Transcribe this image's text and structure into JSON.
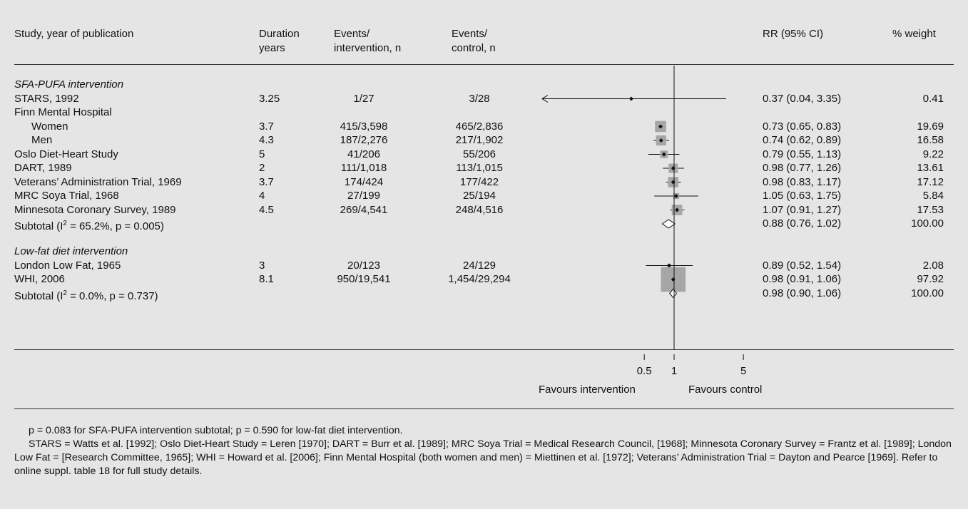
{
  "header": {
    "study": "Study, year of publication",
    "duration_1": "Duration",
    "duration_2": "years",
    "events_int_1": "Events/",
    "events_int_2": "intervention, n",
    "events_ctl_1": "Events/",
    "events_ctl_2": "control, n",
    "rr": "RR (95% CI)",
    "weight": "% weight"
  },
  "chart_data": {
    "type": "forest",
    "x_scale": "log",
    "xlim": [
      0.075,
      11
    ],
    "x_ticks": [
      {
        "value": 0.5,
        "label": "0.5"
      },
      {
        "value": 1,
        "label": "1"
      },
      {
        "value": 5,
        "label": "5"
      }
    ],
    "null_line": 1,
    "favours_left": "Favours intervention",
    "favours_right": "Favours control",
    "groups": [
      {
        "name": "SFA-PUFA intervention",
        "rows": [
          {
            "label": "STARS, 1992",
            "duration": "3.25",
            "ev_int": "1/27",
            "ev_ctl": "3/28",
            "rr": 0.37,
            "lo": 0.04,
            "hi": 3.35,
            "ci_text": "0.37 (0.04, 3.35)",
            "weight": "0.41",
            "weight_value": 0.41
          },
          {
            "label": "Finn Mental Hospital",
            "heading": true
          },
          {
            "label": "Women",
            "indent": true,
            "duration": "3.7",
            "ev_int": "415/3,598",
            "ev_ctl": "465/2,836",
            "rr": 0.73,
            "lo": 0.65,
            "hi": 0.83,
            "ci_text": "0.73 (0.65, 0.83)",
            "weight": "19.69",
            "weight_value": 19.69
          },
          {
            "label": "Men",
            "indent": true,
            "duration": "4.3",
            "ev_int": "187/2,276",
            "ev_ctl": "217/1,902",
            "rr": 0.74,
            "lo": 0.62,
            "hi": 0.89,
            "ci_text": "0.74 (0.62, 0.89)",
            "weight": "16.58",
            "weight_value": 16.58
          },
          {
            "label": "Oslo Diet-Heart Study",
            "duration": "5",
            "ev_int": "41/206",
            "ev_ctl": "55/206",
            "rr": 0.79,
            "lo": 0.55,
            "hi": 1.13,
            "ci_text": "0.79 (0.55, 1.13)",
            "weight": "9.22",
            "weight_value": 9.22
          },
          {
            "label": "DART, 1989",
            "duration": "2",
            "ev_int": "111/1,018",
            "ev_ctl": "113/1,015",
            "rr": 0.98,
            "lo": 0.77,
            "hi": 1.26,
            "ci_text": "0.98 (0.77, 1.26)",
            "weight": "13.61",
            "weight_value": 13.61
          },
          {
            "label": "Veterans’ Administration Trial, 1969",
            "duration": "3.7",
            "ev_int": "174/424",
            "ev_ctl": "177/422",
            "rr": 0.98,
            "lo": 0.83,
            "hi": 1.17,
            "ci_text": "0.98 (0.83, 1.17)",
            "weight": "17.12",
            "weight_value": 17.12
          },
          {
            "label": "MRC Soya Trial, 1968",
            "duration": "4",
            "ev_int": "27/199",
            "ev_ctl": "25/194",
            "rr": 1.05,
            "lo": 0.63,
            "hi": 1.75,
            "ci_text": "1.05 (0.63, 1.75)",
            "weight": "5.84",
            "weight_value": 5.84
          },
          {
            "label": "Minnesota Coronary Survey, 1989",
            "duration": "4.5",
            "ev_int": "269/4,541",
            "ev_ctl": "248/4,516",
            "rr": 1.07,
            "lo": 0.91,
            "hi": 1.27,
            "ci_text": "1.07 (0.91, 1.27)",
            "weight": "17.53",
            "weight_value": 17.53
          }
        ],
        "subtotal": {
          "label_pre": "Subtotal (I",
          "label_sup": "2",
          "label_post": " = 65.2%, p = 0.005)",
          "rr": 0.88,
          "lo": 0.76,
          "hi": 1.02,
          "ci_text": "0.88 (0.76, 1.02)",
          "weight": "100.00"
        }
      },
      {
        "name": "Low-fat diet intervention",
        "rows": [
          {
            "label": "London Low Fat, 1965",
            "duration": "3",
            "ev_int": "20/123",
            "ev_ctl": "24/129",
            "rr": 0.89,
            "lo": 0.52,
            "hi": 1.54,
            "ci_text": "0.89 (0.52, 1.54)",
            "weight": "2.08",
            "weight_value": 2.08
          },
          {
            "label": "WHI, 2006",
            "duration": "8.1",
            "ev_int": "950/19,541",
            "ev_ctl": "1,454/29,294",
            "rr": 0.98,
            "lo": 0.91,
            "hi": 1.06,
            "ci_text": "0.98 (0.91, 1.06)",
            "weight": "97.92",
            "weight_value": 97.92
          }
        ],
        "subtotal": {
          "label_pre": "Subtotal (I",
          "label_sup": "2",
          "label_post": " = 0.0%, p = 0.737)",
          "rr": 0.98,
          "lo": 0.9,
          "hi": 1.06,
          "ci_text": "0.98 (0.90, 1.06)",
          "weight": "100.00"
        }
      }
    ]
  },
  "footnote": {
    "line1": "p = 0.083 for SFA-PUFA intervention subtotal; p = 0.590 for low-fat diet intervention.",
    "line2": "STARS = Watts et al. [1992]; Oslo Diet-Heart Study = Leren [1970]; DART = Burr et al. [1989]; MRC Soya Trial = Medical Research Council, [1968]; Minnesota Coronary Survey = Frantz et al. [1989]; London Low Fat = [Research Committee, 1965]; WHI = Howard et al. [2006]; Finn Mental Hospital (both women and men) = Miettinen et al. [1972]; Veterans’ Administration Trial = Dayton and Pearce [1969]. Refer to online suppl. table 18 for full study details."
  }
}
